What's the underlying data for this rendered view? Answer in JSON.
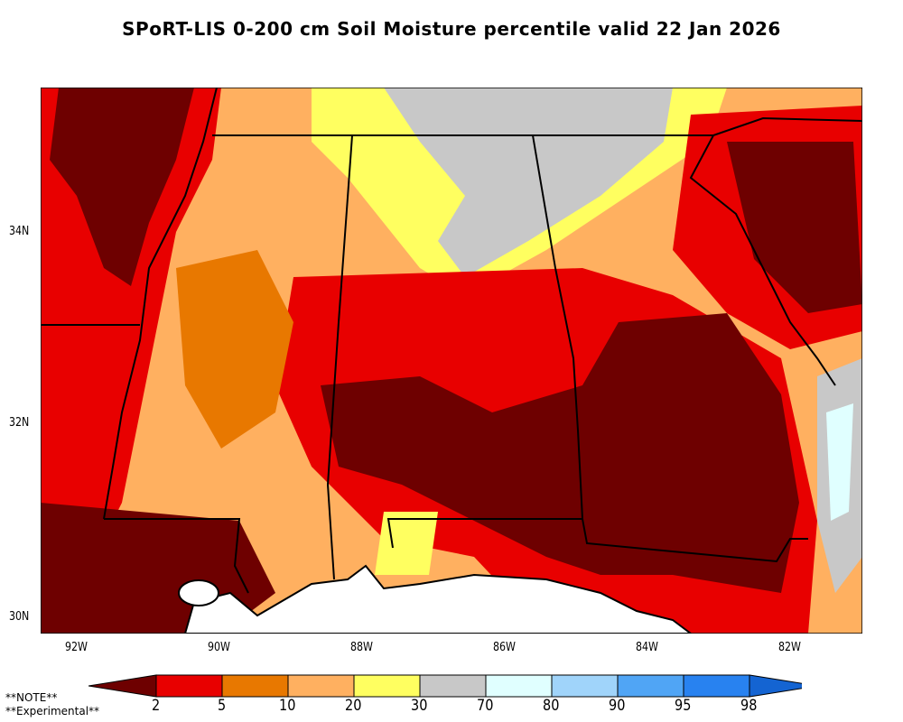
{
  "title": "SPoRT-LIS 0-200 cm Soil Moisture percentile valid 22 Jan 2026",
  "lat_labels": [
    "34N",
    "32N",
    "30N"
  ],
  "lon_labels": [
    "92W",
    "90W",
    "88W",
    "86W",
    "84W",
    "82W"
  ],
  "notes": [
    "**NOTE**",
    "**Experimental**"
  ],
  "legend": {
    "thresholds": [
      "2",
      "5",
      "10",
      "20",
      "30",
      "70",
      "80",
      "90",
      "95",
      "98"
    ],
    "colors": [
      "#6e0000",
      "#e80000",
      "#e87800",
      "#ffb060",
      "#ffff60",
      "#c8c8c8",
      "#e0ffff",
      "#a0d4fa",
      "#50a5f5",
      "#2882f0",
      "#1464d2"
    ]
  }
}
